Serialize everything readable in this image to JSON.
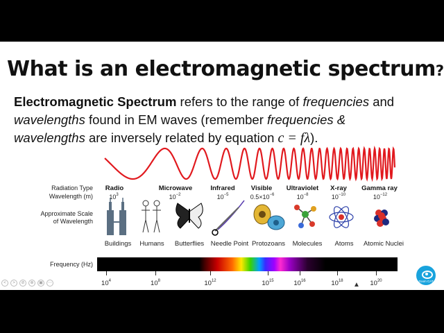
{
  "slide": {
    "title": "What is an electromagnetic spectrum",
    "title_mark": "?",
    "para": {
      "bold": "Electromagnetic Spectrum",
      "t1": " refers to the range of ",
      "i1": "frequencies",
      "t2": " and ",
      "i2": "wavelengths",
      "t3": " found in EM waves (remember ",
      "i3": "frequencies &",
      "i4": "wavelengths",
      "t4": " are inversely related by equation ",
      "equation": "c = fλ",
      "t5": ")."
    }
  },
  "diagram": {
    "row_labels": {
      "radiation_type": "Radiation Type",
      "wavelength": "Wavelength (m)",
      "scale_line1": "Approximate Scale",
      "scale_line2": "of Wavelength",
      "frequency": "Frequency (Hz)"
    },
    "bands": [
      {
        "type": "Radio",
        "wl_base": "10",
        "wl_exp": "3",
        "example": "Buildings"
      },
      {
        "type": "Microwave",
        "wl_base": "10",
        "wl_exp": "−2",
        "example": "Humans"
      },
      {
        "type": "",
        "wl_base": "",
        "wl_exp": "",
        "example": "Butterflies"
      },
      {
        "type": "Infrared",
        "wl_base": "10",
        "wl_exp": "−5",
        "example": "Needle Point"
      },
      {
        "type": "Visible",
        "wl_base": "0.5×10",
        "wl_exp": "−6",
        "example": "Protozoans"
      },
      {
        "type": "Ultraviolet",
        "wl_base": "10",
        "wl_exp": "−8",
        "example": "Molecules"
      },
      {
        "type": "X-ray",
        "wl_base": "10",
        "wl_exp": "−10",
        "example": "Atoms"
      },
      {
        "type": "Gamma ray",
        "wl_base": "10",
        "wl_exp": "−12",
        "example": "Atomic Nuclei"
      }
    ],
    "frequency_ticks": [
      {
        "base": "10",
        "exp": "4"
      },
      {
        "base": "10",
        "exp": "8"
      },
      {
        "base": "10",
        "exp": "12"
      },
      {
        "base": "10",
        "exp": "15"
      },
      {
        "base": "10",
        "exp": "16"
      },
      {
        "base": "10",
        "exp": "18"
      },
      {
        "base": "10",
        "exp": "20"
      }
    ]
  },
  "badge": {
    "text": "Zoom CAT",
    "icon": "eye-icon",
    "color": "#19a3dd"
  },
  "controls": [
    "<",
    ">",
    "⊘",
    "⊕",
    "▣",
    "⋯"
  ]
}
